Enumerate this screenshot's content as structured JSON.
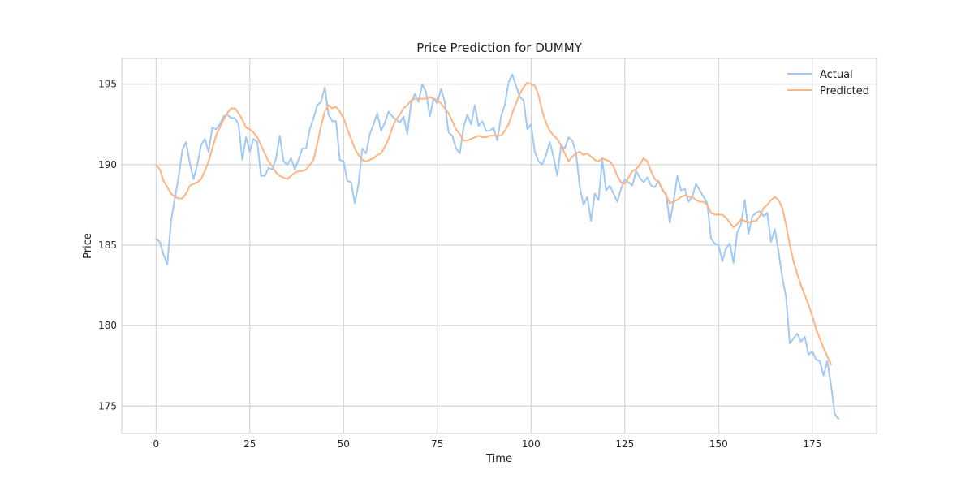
{
  "chart_data": {
    "type": "line",
    "title": "Price Prediction for DUMMY",
    "xlabel": "Time",
    "ylabel": "Price",
    "xlim": [
      -9.15,
      192.15
    ],
    "ylim": [
      173.3,
      196.6
    ],
    "xticks": [
      0,
      25,
      50,
      75,
      100,
      125,
      150,
      175
    ],
    "xtick_labels": [
      "0",
      "25",
      "50",
      "75",
      "100",
      "125",
      "150",
      "175"
    ],
    "yticks": [
      175,
      180,
      185,
      190,
      195
    ],
    "ytick_labels": [
      "175",
      "180",
      "185",
      "190",
      "195"
    ],
    "grid": true,
    "legend_position": "top-right",
    "series": [
      {
        "name": "Actual",
        "color": "#a1c9f4",
        "values": [
          185.4,
          185.2,
          184.4,
          183.8,
          186.5,
          187.9,
          189.2,
          190.9,
          191.4,
          190.1,
          189.1,
          190.0,
          191.2,
          191.6,
          190.8,
          192.3,
          192.2,
          192.5,
          193.0,
          193.1,
          192.9,
          192.9,
          192.5,
          190.3,
          191.7,
          190.8,
          191.6,
          191.4,
          189.3,
          189.3,
          189.8,
          189.7,
          190.4,
          191.8,
          190.2,
          190.0,
          190.4,
          189.7,
          190.3,
          191.0,
          191.0,
          192.2,
          192.9,
          193.7,
          193.9,
          194.8,
          193.1,
          192.7,
          192.7,
          190.3,
          190.2,
          189.0,
          188.9,
          187.6,
          188.8,
          191.0,
          190.7,
          191.9,
          192.5,
          193.2,
          192.1,
          192.6,
          193.3,
          193.0,
          192.8,
          192.6,
          193.0,
          191.9,
          193.8,
          194.4,
          193.9,
          195.0,
          194.5,
          193.0,
          194.1,
          193.8,
          194.7,
          193.9,
          192.0,
          191.8,
          191.0,
          190.7,
          192.3,
          193.1,
          192.5,
          193.7,
          192.4,
          192.7,
          192.1,
          192.1,
          192.3,
          191.5,
          193.0,
          193.7,
          195.1,
          195.6,
          194.9,
          194.2,
          194.0,
          192.2,
          192.5,
          190.8,
          190.2,
          190.0,
          190.6,
          191.4,
          190.5,
          189.3,
          191.2,
          191.0,
          191.7,
          191.5,
          190.7,
          188.6,
          187.5,
          188.0,
          186.5,
          188.2,
          187.8,
          190.3,
          188.4,
          188.7,
          188.2,
          187.7,
          188.5,
          189.1,
          188.9,
          188.7,
          189.6,
          189.2,
          188.9,
          189.2,
          188.7,
          188.6,
          189.0,
          188.4,
          188.2,
          186.4,
          187.7,
          189.3,
          188.4,
          188.5,
          187.7,
          188.0,
          188.8,
          188.4,
          188.0,
          187.6,
          185.4,
          185.1,
          185.0,
          184.0,
          184.8,
          185.1,
          183.9,
          185.8,
          186.3,
          187.8,
          185.7,
          186.8,
          187.0,
          187.1,
          186.8,
          187.0,
          185.2,
          186.0,
          184.6,
          183.0,
          181.8,
          178.9,
          179.2,
          179.5,
          179.0,
          179.3,
          178.2,
          178.4,
          177.9,
          177.8,
          176.9,
          177.8,
          176.3,
          174.5,
          174.2
        ]
      },
      {
        "name": "Predicted",
        "color": "#ffb482",
        "values": [
          190.0,
          189.7,
          189.0,
          188.6,
          188.2,
          188.0,
          187.9,
          187.9,
          188.2,
          188.7,
          188.8,
          188.9,
          189.1,
          189.6,
          190.2,
          191.0,
          191.8,
          192.3,
          192.8,
          193.2,
          193.5,
          193.5,
          193.2,
          192.8,
          192.3,
          192.2,
          192.0,
          191.7,
          191.2,
          190.7,
          190.2,
          189.9,
          189.5,
          189.3,
          189.2,
          189.1,
          189.3,
          189.5,
          189.6,
          189.6,
          189.7,
          190.0,
          190.3,
          191.3,
          192.4,
          193.3,
          193.7,
          193.5,
          193.6,
          193.3,
          192.9,
          192.2,
          191.6,
          191.0,
          190.6,
          190.3,
          190.2,
          190.3,
          190.4,
          190.6,
          190.7,
          191.1,
          191.6,
          192.3,
          192.8,
          193.1,
          193.5,
          193.7,
          194.0,
          194.1,
          194.1,
          194.1,
          194.1,
          194.2,
          194.1,
          194.0,
          193.8,
          193.5,
          193.2,
          192.7,
          192.2,
          191.9,
          191.5,
          191.5,
          191.6,
          191.7,
          191.8,
          191.7,
          191.7,
          191.8,
          191.8,
          191.8,
          191.8,
          192.1,
          192.5,
          193.2,
          193.8,
          194.4,
          194.8,
          195.1,
          195.0,
          194.9,
          194.3,
          193.3,
          192.6,
          192.1,
          191.8,
          191.6,
          191.2,
          190.7,
          190.2,
          190.5,
          190.7,
          190.8,
          190.6,
          190.7,
          190.5,
          190.3,
          190.2,
          190.4,
          190.3,
          190.2,
          189.9,
          189.3,
          188.9,
          188.8,
          189.2,
          189.6,
          189.7,
          190.0,
          190.4,
          190.2,
          189.6,
          189.1,
          188.9,
          188.5,
          188.1,
          187.6,
          187.7,
          187.8,
          188.0,
          188.1,
          188.0,
          188.0,
          187.8,
          187.7,
          187.7,
          187.5,
          187.0,
          186.9,
          186.9,
          186.9,
          186.7,
          186.4,
          186.1,
          186.3,
          186.6,
          186.5,
          186.4,
          186.5,
          186.5,
          186.8,
          187.3,
          187.5,
          187.8,
          188.0,
          187.8,
          187.3,
          186.3,
          185.0,
          184.0,
          183.2,
          182.5,
          181.9,
          181.3,
          180.6,
          179.8,
          179.2,
          178.6,
          178.1,
          177.6
        ]
      }
    ]
  }
}
